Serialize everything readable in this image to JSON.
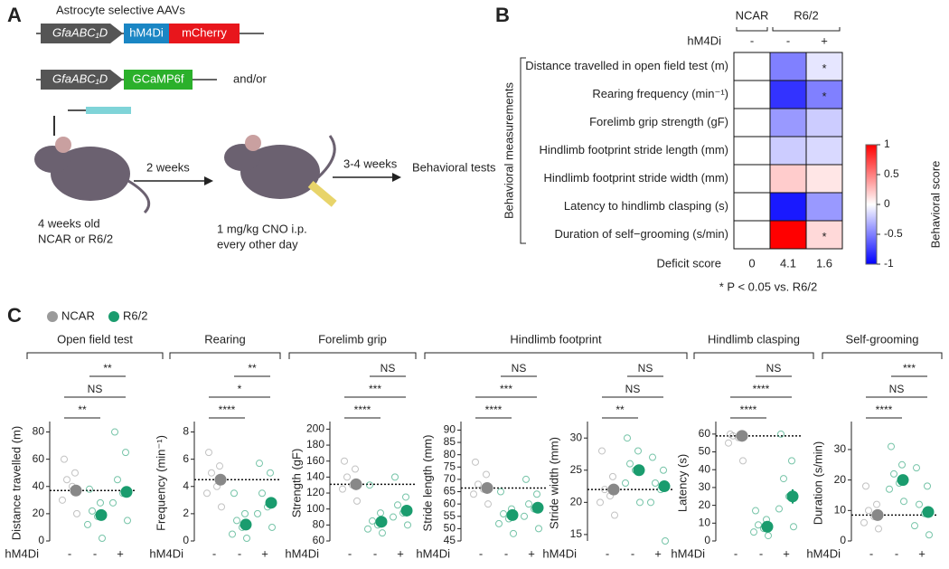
{
  "panel_a": {
    "letter": "A",
    "title": "Astrocyte selective AAVs",
    "promoter_1": "GfaABC₁D",
    "promoter_2": "GfaABC₁D",
    "gene_1": "hM4Di",
    "reporter_1": "mCherry",
    "gene_2": "GCaMP6f",
    "connector": "and/or",
    "step_1": "2 weeks",
    "step_2": "3-4 weeks",
    "outcome": "Behavioral tests",
    "mouse_1": [
      "4 weeks old",
      "NCAR or R6/2"
    ],
    "mouse_2": [
      "1 mg/kg  CNO i.p.",
      "every other day"
    ]
  },
  "panel_b": {
    "letter": "B",
    "columns": [
      "NCAR",
      "R6/2"
    ],
    "treatment_label": "hM4Di",
    "treatment": [
      "-",
      "-",
      "+"
    ],
    "group_label": "Behavioral measurements",
    "rows": [
      "Distance travelled in open field test (m)",
      "Rearing frequency (min⁻¹)",
      "Forelimb grip strength (gF)",
      "Hindlimb footprint stride length (mm)",
      "Hindlimb footprint stride width (mm)",
      "Latency to hindlimb clasping (s)",
      "Duration of self−grooming (s/min)"
    ],
    "values": [
      [
        0,
        -0.5,
        -0.1
      ],
      [
        0,
        -0.8,
        -0.5
      ],
      [
        0,
        -0.4,
        -0.2
      ],
      [
        0,
        -0.2,
        -0.15
      ],
      [
        0,
        0.2,
        0.1
      ],
      [
        0,
        -0.9,
        -0.4
      ],
      [
        0,
        1,
        0.15
      ]
    ],
    "significance": [
      [
        null,
        null,
        "*"
      ],
      [
        null,
        null,
        "*"
      ],
      [
        null,
        null,
        null
      ],
      [
        null,
        null,
        null
      ],
      [
        null,
        null,
        null
      ],
      [
        null,
        null,
        null
      ],
      [
        null,
        null,
        "*"
      ]
    ],
    "colorbar_label": "Behavioral score",
    "clim": [
      -1,
      1
    ],
    "cticks": [
      1,
      0.5,
      0,
      -0.5,
      -1
    ],
    "deficit_label": "Deficit score",
    "deficit": [
      0,
      4.1,
      1.6
    ],
    "footnote": "* P < 0.05 vs. R6/2"
  },
  "panel_c": {
    "letter": "C",
    "legend": [
      {
        "name": "NCAR",
        "color": "#9a9a9a"
      },
      {
        "name": "R6/2",
        "color": "#1a9c6e"
      }
    ],
    "groups": [
      "Open field test",
      "Rearing",
      "Forelimb grip",
      "Hindlimb footprint",
      "Hindlimb clasping",
      "Self-grooming"
    ],
    "charts": [
      {
        "type": "scatter",
        "ylabel": "Distance travelled (m)",
        "x_label": "hM4Di",
        "categories": [
          "-",
          "-",
          "+"
        ],
        "ylim": [
          0,
          85
        ],
        "yticks": [
          0,
          20,
          40,
          60,
          80
        ],
        "means": [
          37,
          19,
          36
        ],
        "points": [
          [
            60,
            50,
            45,
            40,
            30,
            20
          ],
          [
            38,
            28,
            22,
            18,
            12,
            2
          ],
          [
            80,
            65,
            45,
            35,
            28,
            15
          ]
        ],
        "sig": [
          "**",
          "NS",
          "**"
        ]
      },
      {
        "type": "scatter",
        "ylabel": "Frequency (min⁻¹)",
        "x_label": "hM4Di",
        "categories": [
          "-",
          "-",
          "+"
        ],
        "ylim": [
          0,
          8.5
        ],
        "yticks": [
          0,
          2,
          4,
          6,
          8
        ],
        "means": [
          4.5,
          1.2,
          2.8
        ],
        "points": [
          [
            6.5,
            5.5,
            5,
            4,
            3.5,
            2.5
          ],
          [
            3.5,
            2,
            1.5,
            1,
            0.5,
            0.2
          ],
          [
            5.7,
            5,
            3.5,
            2.5,
            2,
            1
          ]
        ],
        "sig": [
          "****",
          "*",
          "**"
        ]
      },
      {
        "type": "scatter",
        "ylabel": "Strength (gF)",
        "x_label": "hM4Di",
        "categories": [
          "-",
          "-",
          "+"
        ],
        "ylim": [
          60,
          205
        ],
        "yticks": [
          60,
          80,
          100,
          120,
          140,
          160,
          180,
          200
        ],
        "means": [
          131,
          84,
          98
        ],
        "points": [
          [
            160,
            150,
            140,
            130,
            125,
            110
          ],
          [
            130,
            95,
            85,
            80,
            75,
            70
          ],
          [
            140,
            115,
            105,
            95,
            90,
            80
          ]
        ],
        "sig": [
          "****",
          "***",
          "NS"
        ]
      },
      {
        "type": "scatter",
        "ylabel": "Stride length (mm)",
        "x_label": "hM4Di",
        "categories": [
          "-",
          "-",
          "+"
        ],
        "ylim": [
          45,
          92
        ],
        "yticks": [
          45,
          50,
          55,
          60,
          65,
          70,
          75,
          80,
          85,
          90
        ],
        "means": [
          66.5,
          55.5,
          58.5
        ],
        "points": [
          [
            77,
            72,
            68,
            66,
            64,
            60
          ],
          [
            65,
            58,
            56,
            54,
            52,
            48
          ],
          [
            70,
            64,
            60,
            58,
            55,
            50
          ]
        ],
        "sig": [
          "****",
          "***",
          "NS"
        ]
      },
      {
        "type": "scatter",
        "ylabel": "Stride width (mm)",
        "x_label": "hM4Di",
        "categories": [
          "-",
          "-",
          "+"
        ],
        "ylim": [
          14,
          32
        ],
        "yticks": [
          15,
          20,
          25,
          30
        ],
        "means": [
          22,
          25,
          22.5
        ],
        "points": [
          [
            28,
            24,
            22,
            21,
            20,
            18
          ],
          [
            30,
            28,
            26,
            25,
            23,
            20
          ],
          [
            27,
            25,
            23,
            22,
            20,
            14
          ]
        ],
        "sig": [
          "**",
          "NS",
          "NS"
        ]
      },
      {
        "type": "scatter",
        "ylabel": "Latency (s)",
        "x_label": "hM4Di",
        "categories": [
          "-",
          "-",
          "+"
        ],
        "ylim": [
          0,
          65
        ],
        "yticks": [
          0,
          10,
          20,
          30,
          40,
          50,
          60
        ],
        "means": [
          59,
          8,
          25
        ],
        "errors": [
          null,
          null,
          4
        ],
        "points": [
          [
            60,
            60,
            59,
            58,
            55,
            45
          ],
          [
            17,
            12,
            9,
            7,
            5,
            3
          ],
          [
            60,
            45,
            35,
            25,
            18,
            8
          ]
        ],
        "sig": [
          "****",
          "****",
          "NS"
        ]
      },
      {
        "type": "scatter",
        "ylabel": "Duration (s/min)",
        "x_label": "hM4Di",
        "categories": [
          "-",
          "-",
          "+"
        ],
        "ylim": [
          0,
          38
        ],
        "yticks": [
          0,
          10,
          20,
          30
        ],
        "means": [
          8.5,
          20,
          9.5
        ],
        "points": [
          [
            18,
            12,
            10,
            8,
            6,
            4
          ],
          [
            31,
            25,
            22,
            19,
            17,
            13
          ],
          [
            24,
            18,
            12,
            9,
            5,
            2
          ]
        ],
        "sig": [
          "****",
          "NS",
          "***"
        ]
      }
    ]
  }
}
